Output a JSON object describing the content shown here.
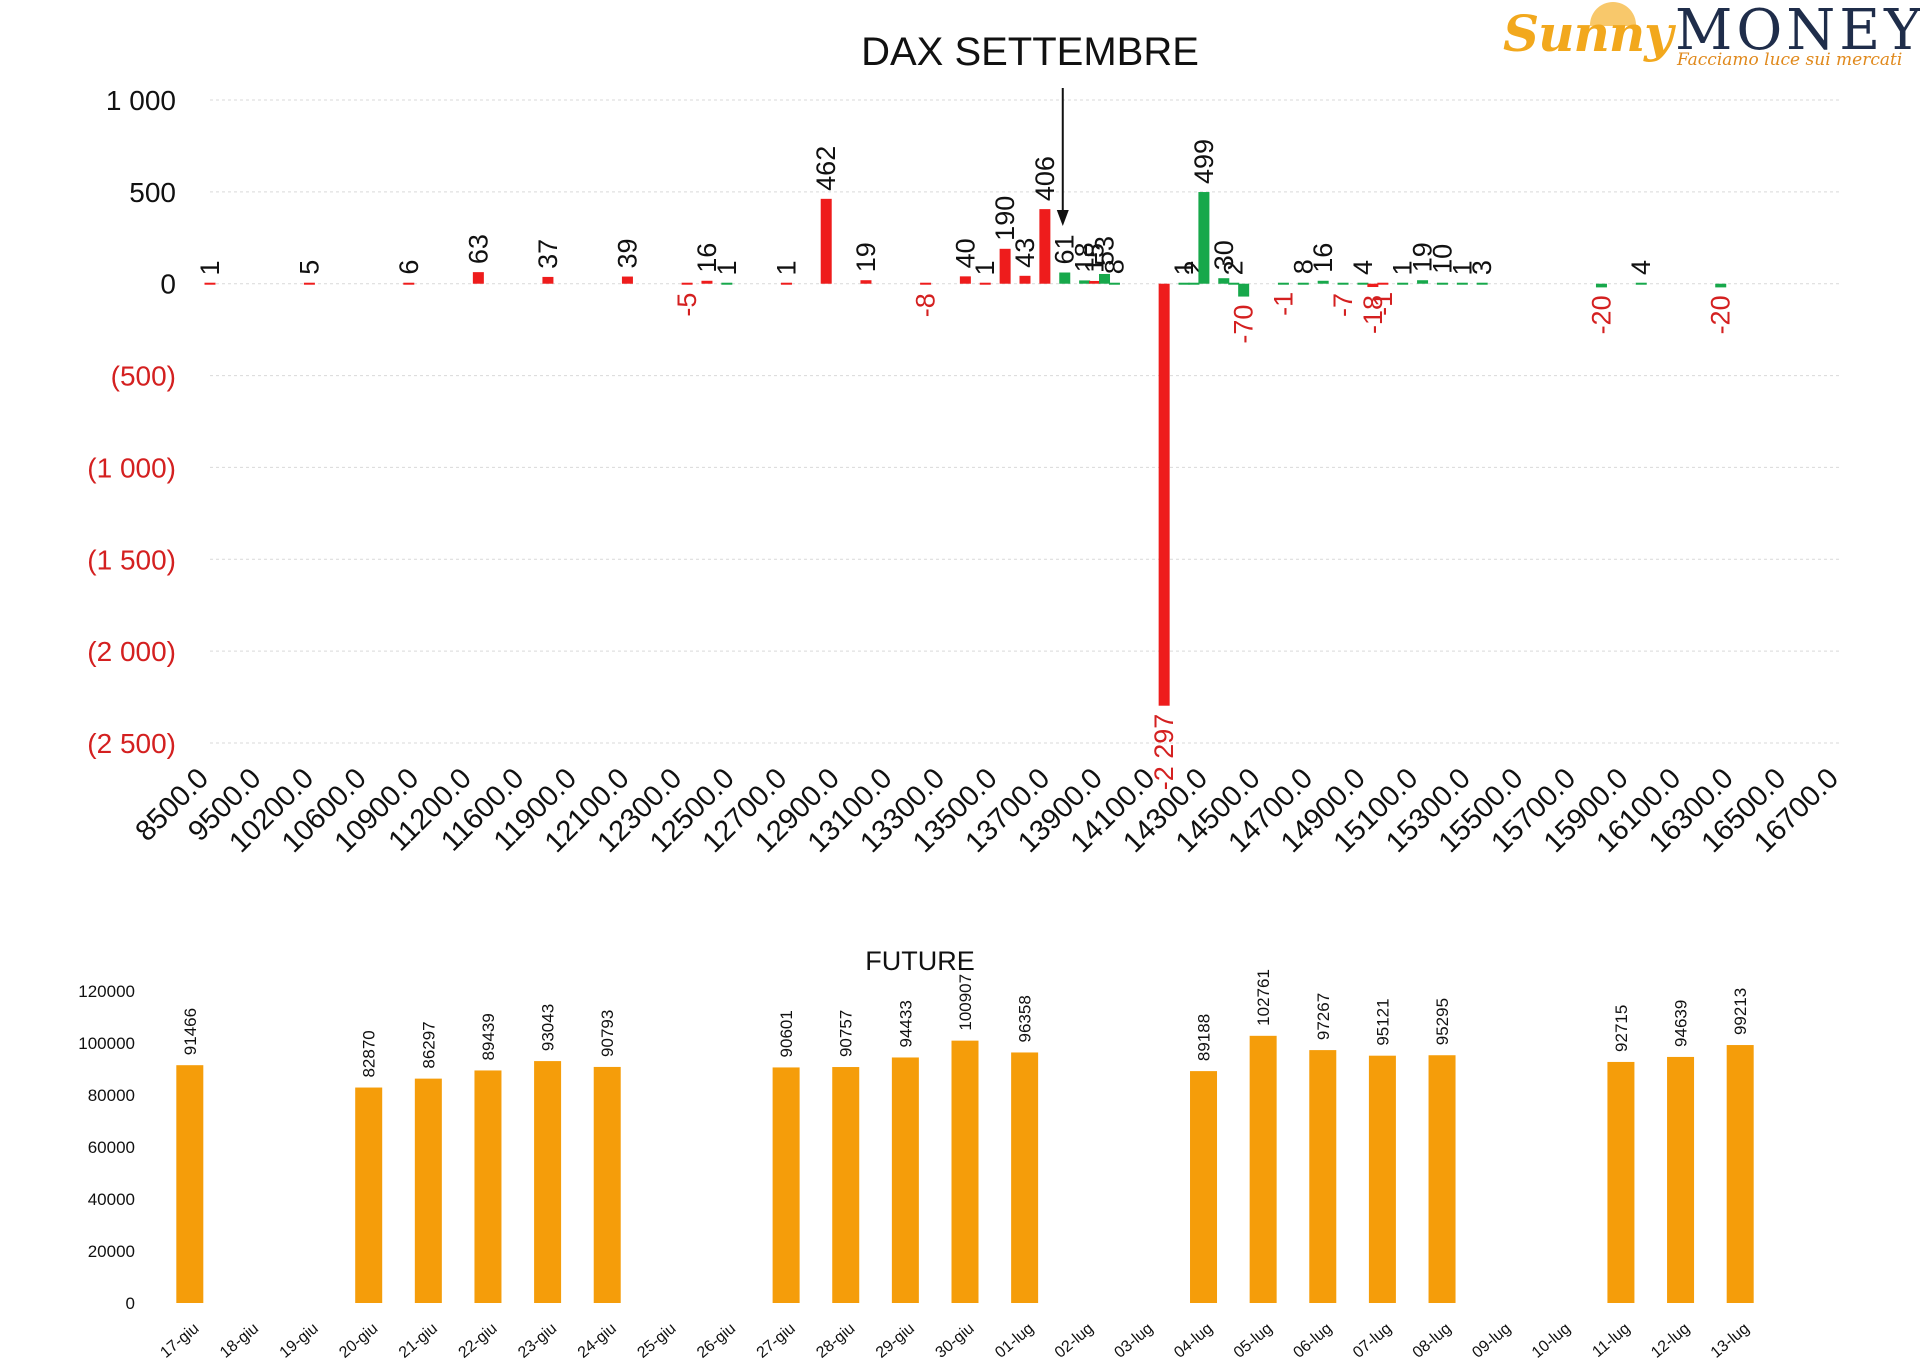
{
  "logo": {
    "brand_left": "Sunny",
    "brand_right": "MONEY",
    "tagline": "Facciamo luce sui mercati"
  },
  "colors": {
    "red": "#ee1c1c",
    "green": "#17a84b",
    "orange": "#f59d0a",
    "grid": "#d9d9d9",
    "negative_tick": "#d42020"
  },
  "chart_data": [
    {
      "type": "bar",
      "title": "DAX SETTEMBRE",
      "xlabel": "",
      "ylabel": "",
      "ylim": [
        -2500,
        1000
      ],
      "yticks": [
        {
          "value": 1000,
          "label": "1 000"
        },
        {
          "value": 500,
          "label": "500"
        },
        {
          "value": 0,
          "label": "0"
        },
        {
          "value": -500,
          "label": "(500)"
        },
        {
          "value": -1000,
          "label": "(1 000)"
        },
        {
          "value": -1500,
          "label": "(1 500)"
        },
        {
          "value": -2000,
          "label": "(2 000)"
        },
        {
          "value": -2500,
          "label": "(2 500)"
        }
      ],
      "x_range": [
        8500,
        16700
      ],
      "x_tick_labels": [
        "8500.0",
        "9500.0",
        "10200.0",
        "10600.0",
        "10900.0",
        "11200.0",
        "11600.0",
        "11900.0",
        "12100.0",
        "12300.0",
        "12500.0",
        "12700.0",
        "12900.0",
        "13100.0",
        "13300.0",
        "13500.0",
        "13700.0",
        "13900.0",
        "14100.0",
        "14300.0",
        "14500.0",
        "14700.0",
        "14900.0",
        "15100.0",
        "15300.0",
        "15500.0",
        "15700.0",
        "15900.0",
        "16100.0",
        "16300.0",
        "16500.0",
        "16700.0"
      ],
      "grid": true,
      "legend": "none",
      "annotation": "arrow pointing down near 12800",
      "bars": [
        {
          "x": 8500,
          "value": 1,
          "label": "1",
          "color": "red"
        },
        {
          "x": 9000,
          "value": 5,
          "label": "5",
          "color": "red"
        },
        {
          "x": 9500,
          "value": 6,
          "label": "6",
          "color": "red"
        },
        {
          "x": 9850,
          "value": 63,
          "label": "63",
          "color": "red"
        },
        {
          "x": 10200,
          "value": 37,
          "label": "37",
          "color": "red"
        },
        {
          "x": 10600,
          "value": 39,
          "label": "39",
          "color": "red"
        },
        {
          "x": 10900,
          "value": -5,
          "label": "-5",
          "color": "red"
        },
        {
          "x": 11000,
          "value": 16,
          "label": "16",
          "color": "red"
        },
        {
          "x": 11100,
          "value": 1,
          "label": "1",
          "color": "green"
        },
        {
          "x": 11400,
          "value": 1,
          "label": "1",
          "color": "red"
        },
        {
          "x": 11600,
          "value": 462,
          "label": "462",
          "color": "red"
        },
        {
          "x": 11800,
          "value": 19,
          "label": "19",
          "color": "red"
        },
        {
          "x": 12100,
          "value": -8,
          "label": "-8",
          "color": "red"
        },
        {
          "x": 12300,
          "value": 40,
          "label": "40",
          "color": "red"
        },
        {
          "x": 12400,
          "value": 1,
          "label": "1",
          "color": "red"
        },
        {
          "x": 12500,
          "value": 190,
          "label": "190",
          "color": "red"
        },
        {
          "x": 12600,
          "value": 43,
          "label": "43",
          "color": "red"
        },
        {
          "x": 12700,
          "value": 406,
          "label": "406",
          "color": "red"
        },
        {
          "x": 12800,
          "value": 61,
          "label": "61",
          "color": "green"
        },
        {
          "x": 12900,
          "value": 18,
          "label": "18",
          "color": "green"
        },
        {
          "x": 12950,
          "value": 15,
          "label": "15",
          "color": "red"
        },
        {
          "x": 13000,
          "value": 53,
          "label": "53",
          "color": "green"
        },
        {
          "x": 13050,
          "value": 8,
          "label": "8",
          "color": "green"
        },
        {
          "x": 13300,
          "value": -2297,
          "label": "-2 297",
          "color": "red"
        },
        {
          "x": 13400,
          "value": 1,
          "label": "1",
          "color": "green"
        },
        {
          "x": 13450,
          "value": 2,
          "label": "2",
          "color": "green"
        },
        {
          "x": 13500,
          "value": 499,
          "label": "499",
          "color": "green"
        },
        {
          "x": 13600,
          "value": 30,
          "label": "30",
          "color": "green"
        },
        {
          "x": 13650,
          "value": 2,
          "label": "2",
          "color": "green"
        },
        {
          "x": 13700,
          "value": -70,
          "label": "-70",
          "color": "green"
        },
        {
          "x": 13900,
          "value": -1,
          "label": "-1",
          "color": "green"
        },
        {
          "x": 14000,
          "value": 8,
          "label": "8",
          "color": "green"
        },
        {
          "x": 14100,
          "value": 16,
          "label": "16",
          "color": "green"
        },
        {
          "x": 14200,
          "value": -7,
          "label": "-7",
          "color": "green"
        },
        {
          "x": 14300,
          "value": 4,
          "label": "4",
          "color": "green"
        },
        {
          "x": 14350,
          "value": -18,
          "label": "-18",
          "color": "red"
        },
        {
          "x": 14400,
          "value": -1,
          "label": "-1",
          "color": "red"
        },
        {
          "x": 14500,
          "value": 1,
          "label": "1",
          "color": "green"
        },
        {
          "x": 14600,
          "value": 19,
          "label": "19",
          "color": "green"
        },
        {
          "x": 14700,
          "value": 10,
          "label": "10",
          "color": "green"
        },
        {
          "x": 14800,
          "value": 1,
          "label": "1",
          "color": "green"
        },
        {
          "x": 14900,
          "value": 3,
          "label": "3",
          "color": "green"
        },
        {
          "x": 15500,
          "value": -20,
          "label": "-20",
          "color": "green"
        },
        {
          "x": 15700,
          "value": 4,
          "label": "4",
          "color": "green"
        },
        {
          "x": 16100,
          "value": -20,
          "label": "-20",
          "color": "green"
        }
      ]
    },
    {
      "type": "bar",
      "title": "FUTURE",
      "xlabel": "",
      "ylabel": "",
      "ylim": [
        0,
        120000
      ],
      "yticks": [
        0,
        20000,
        40000,
        60000,
        80000,
        100000,
        120000
      ],
      "grid": false,
      "legend": "none",
      "categories": [
        "17-giu",
        "18-giu",
        "19-giu",
        "20-giu",
        "21-giu",
        "22-giu",
        "23-giu",
        "24-giu",
        "25-giu",
        "26-giu",
        "27-giu",
        "28-giu",
        "29-giu",
        "30-giu",
        "01-lug",
        "02-lug",
        "03-lug",
        "04-lug",
        "05-lug",
        "06-lug",
        "07-lug",
        "08-lug",
        "09-lug",
        "10-lug",
        "11-lug",
        "12-lug",
        "13-lug"
      ],
      "values": [
        91466,
        null,
        null,
        82870,
        86297,
        89439,
        93043,
        90793,
        null,
        null,
        90601,
        90757,
        94433,
        100907,
        96358,
        null,
        null,
        89188,
        102761,
        97267,
        95121,
        95295,
        null,
        null,
        92715,
        94639,
        99213
      ]
    }
  ]
}
